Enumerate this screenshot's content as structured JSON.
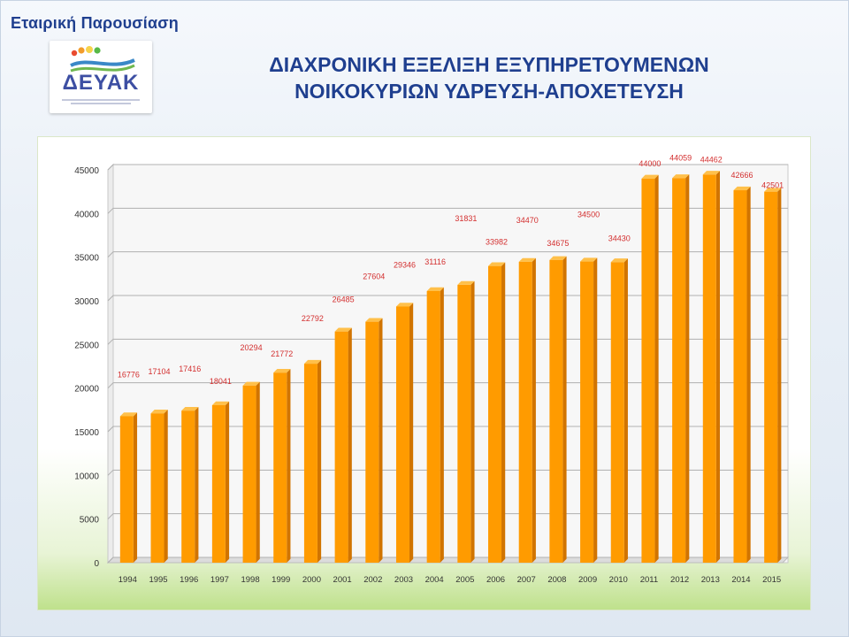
{
  "slide": {
    "label": "Εταιρική Παρουσίαση",
    "title_line1": "ΔΙΑΧΡΟΝΙΚΗ ΕΞΕΛΙΞΗ ΕΞΥΠΗΡΕΤΟΥΜΕΝΩΝ",
    "title_line2": "ΝΟΙΚΟΚΥΡΙΩΝ ΥΔΡΕΥΣΗ-ΑΠΟΧΕΤΕΥΣΗ"
  },
  "logo": {
    "text": "ΔΕΥΑΚ",
    "dot_colors": [
      "#e94b2f",
      "#f29c2b",
      "#f6d34b",
      "#58b947"
    ],
    "wave_colors": [
      "#3a88c7",
      "#6fb84f"
    ]
  },
  "colors": {
    "title": "#1f3f8f",
    "bar_front": "#ff9b00",
    "bar_side": "#d17400",
    "bar_top": "#ffc04a",
    "data_label": "#d32f2f",
    "axis_text": "#333333",
    "grid": "#b0b0b0",
    "wall": "#f7f7f7",
    "floor": "#dcdcdc"
  },
  "chart_data": {
    "type": "bar",
    "title": "",
    "xlabel": "",
    "ylabel": "",
    "ylim": [
      0,
      45000
    ],
    "y_ticks": [
      0,
      5000,
      10000,
      15000,
      20000,
      25000,
      30000,
      35000,
      40000,
      45000
    ],
    "grid": true,
    "legend": "none",
    "categories": [
      "1994",
      "1995",
      "1996",
      "1997",
      "1998",
      "1999",
      "2000",
      "2001",
      "2002",
      "2003",
      "2004",
      "2005",
      "2006",
      "2007",
      "2008",
      "2009",
      "2010",
      "2011",
      "2012",
      "2013",
      "2014",
      "2015"
    ],
    "values": [
      16776,
      17104,
      17416,
      18041,
      20294,
      21772,
      22792,
      26485,
      27604,
      29346,
      31116,
      31831,
      33982,
      34470,
      34675,
      34500,
      34430,
      44000,
      44059,
      44462,
      42666,
      42501
    ]
  }
}
